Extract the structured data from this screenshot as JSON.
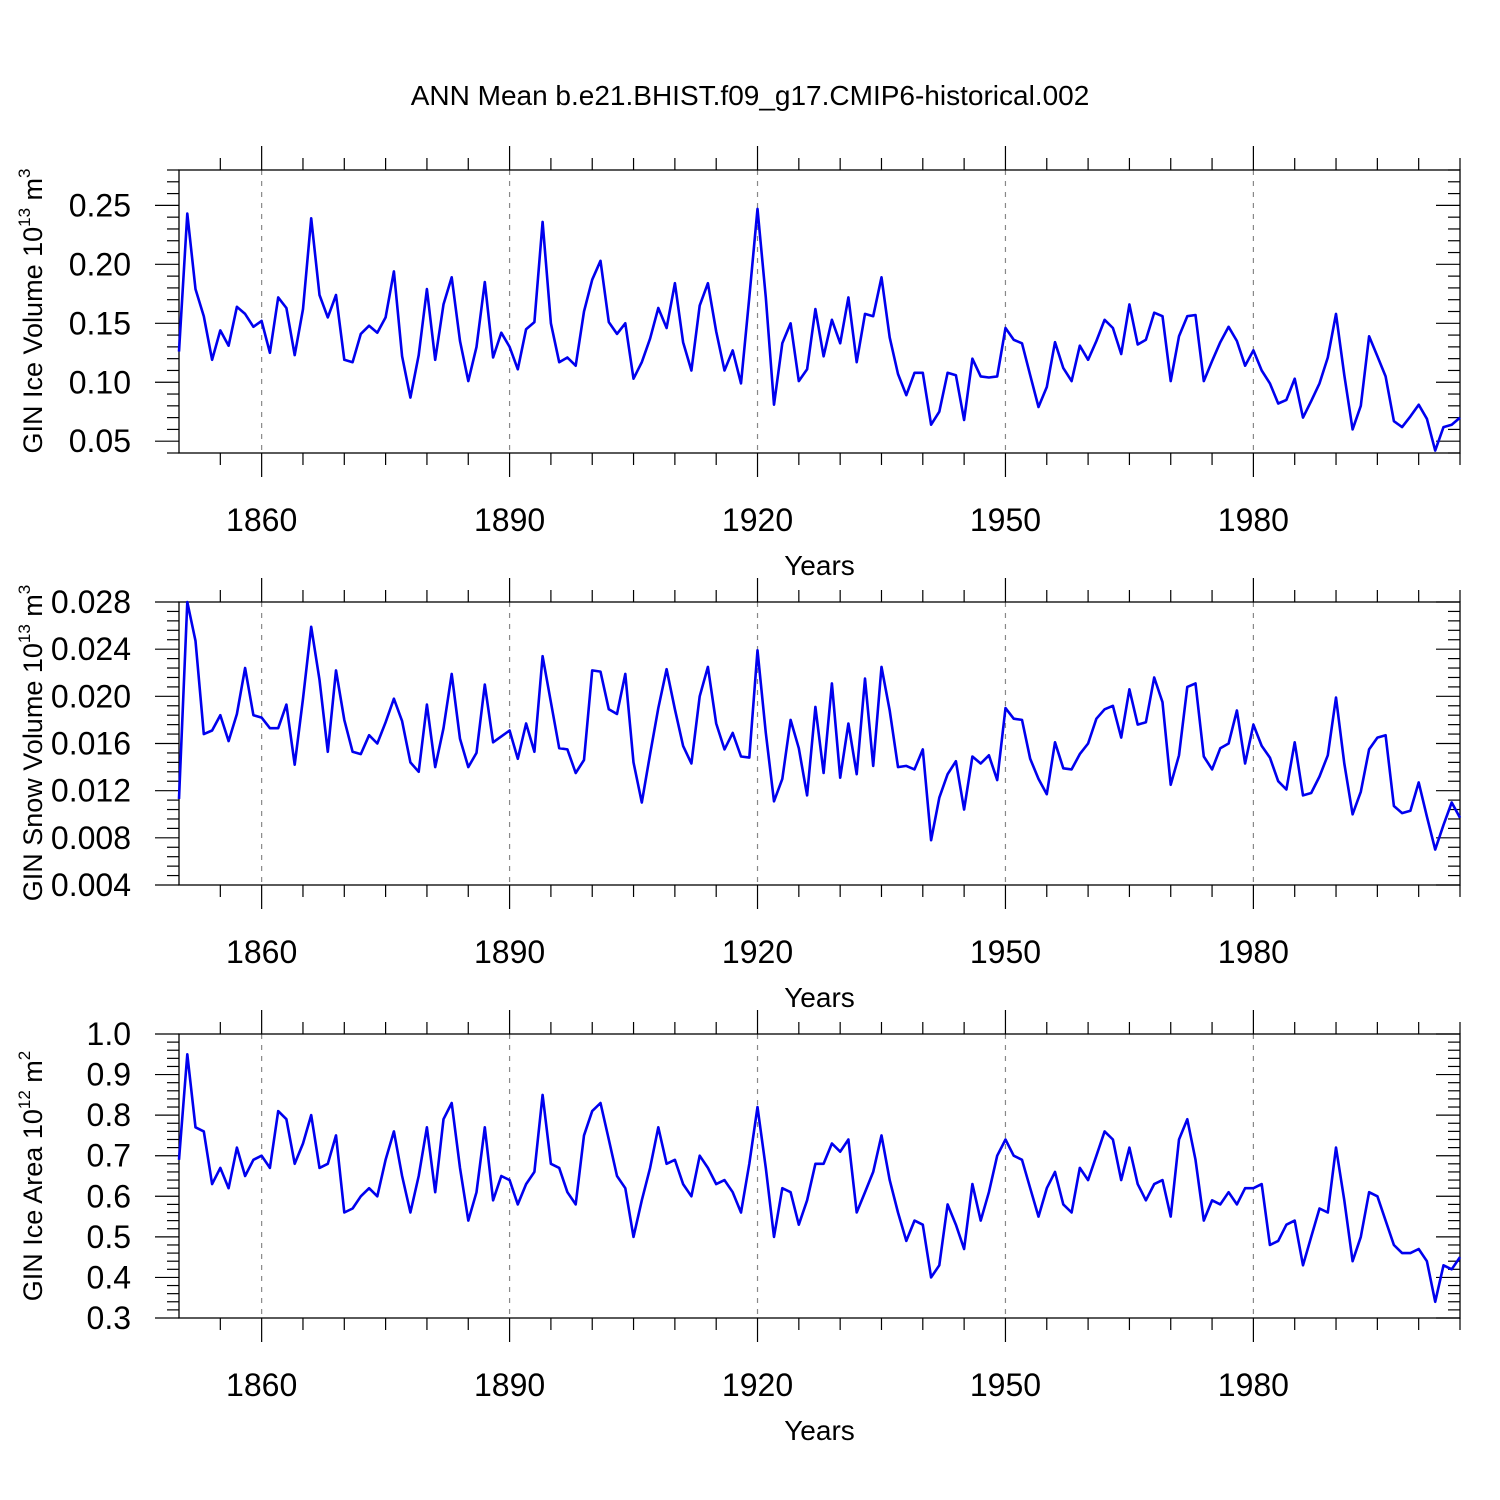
{
  "figure": {
    "title": "ANN Mean b.e21.BHIST.f09_g17.CMIP6-historical.002"
  },
  "colors": {
    "series": "#0000ee",
    "axis": "#000000",
    "grid": "#888888"
  },
  "chart_data": [
    {
      "type": "line",
      "title": "",
      "ylabel_main": "GIN Ice Volume 10",
      "ylabel_exp": "13",
      "ylabel_unit": "m",
      "ylabel_unit_exp": "3",
      "xlabel": "Years",
      "xlim": [
        1850,
        2005
      ],
      "ylim": [
        0.04,
        0.28
      ],
      "xticks": [
        1860,
        1890,
        1920,
        1950,
        1980
      ],
      "xticklabels": [
        "1860",
        "1890",
        "1920",
        "1950",
        "1980"
      ],
      "yticks": [
        0.05,
        0.1,
        0.15,
        0.2,
        0.25
      ],
      "yticklabels": [
        "0.05",
        "0.10",
        "0.15",
        "0.20",
        "0.25"
      ],
      "series": [
        {
          "name": "GIN Ice Volume",
          "x_start": 1850,
          "values": [
            0.126,
            0.243,
            0.179,
            0.156,
            0.119,
            0.144,
            0.131,
            0.164,
            0.158,
            0.147,
            0.152,
            0.125,
            0.172,
            0.163,
            0.123,
            0.162,
            0.239,
            0.174,
            0.155,
            0.174,
            0.119,
            0.117,
            0.141,
            0.148,
            0.142,
            0.155,
            0.194,
            0.122,
            0.087,
            0.123,
            0.179,
            0.119,
            0.166,
            0.189,
            0.135,
            0.101,
            0.13,
            0.185,
            0.121,
            0.142,
            0.13,
            0.111,
            0.145,
            0.151,
            0.236,
            0.15,
            0.117,
            0.121,
            0.114,
            0.16,
            0.187,
            0.203,
            0.151,
            0.141,
            0.15,
            0.103,
            0.117,
            0.137,
            0.163,
            0.146,
            0.184,
            0.134,
            0.11,
            0.165,
            0.184,
            0.143,
            0.11,
            0.127,
            0.099,
            0.172,
            0.247,
            0.172,
            0.081,
            0.133,
            0.15,
            0.101,
            0.111,
            0.162,
            0.122,
            0.153,
            0.133,
            0.172,
            0.117,
            0.158,
            0.156,
            0.189,
            0.138,
            0.107,
            0.089,
            0.108,
            0.108,
            0.064,
            0.075,
            0.108,
            0.106,
            0.068,
            0.12,
            0.105,
            0.104,
            0.105,
            0.146,
            0.136,
            0.133,
            0.106,
            0.079,
            0.096,
            0.134,
            0.112,
            0.101,
            0.131,
            0.119,
            0.135,
            0.153,
            0.146,
            0.124,
            0.166,
            0.132,
            0.136,
            0.159,
            0.156,
            0.101,
            0.139,
            0.156,
            0.157,
            0.101,
            0.118,
            0.134,
            0.147,
            0.135,
            0.114,
            0.127,
            0.11,
            0.099,
            0.082,
            0.085,
            0.103,
            0.07,
            0.084,
            0.099,
            0.121,
            0.158,
            0.106,
            0.06,
            0.08,
            0.139,
            0.122,
            0.105,
            0.067,
            0.062,
            0.071,
            0.081,
            0.069,
            0.042,
            0.062,
            0.064,
            0.07
          ]
        }
      ]
    },
    {
      "type": "line",
      "title": "",
      "ylabel_main": "GIN Snow Volume 10",
      "ylabel_exp": "13",
      "ylabel_unit": "m",
      "ylabel_unit_exp": "3",
      "xlabel": "Years",
      "xlim": [
        1850,
        2005
      ],
      "ylim": [
        0.004,
        0.028
      ],
      "xticks": [
        1860,
        1890,
        1920,
        1950,
        1980
      ],
      "xticklabels": [
        "1860",
        "1890",
        "1920",
        "1950",
        "1980"
      ],
      "yticks": [
        0.004,
        0.008,
        0.012,
        0.016,
        0.02,
        0.024,
        0.028
      ],
      "yticklabels": [
        "0.004",
        "0.008",
        "0.012",
        "0.016",
        "0.020",
        "0.024",
        "0.028"
      ],
      "series": [
        {
          "name": "GIN Snow Volume",
          "x_start": 1850,
          "values": [
            0.0113,
            0.028,
            0.0247,
            0.0168,
            0.0171,
            0.0184,
            0.0162,
            0.0185,
            0.0224,
            0.0184,
            0.0182,
            0.0173,
            0.0173,
            0.0193,
            0.0142,
            0.0198,
            0.0259,
            0.0214,
            0.0153,
            0.0222,
            0.018,
            0.0153,
            0.0151,
            0.0167,
            0.016,
            0.0178,
            0.0198,
            0.0179,
            0.0144,
            0.0136,
            0.0193,
            0.014,
            0.0173,
            0.0219,
            0.0164,
            0.014,
            0.0152,
            0.021,
            0.0161,
            0.0166,
            0.0171,
            0.0147,
            0.0177,
            0.0153,
            0.0234,
            0.0195,
            0.0156,
            0.0155,
            0.0135,
            0.0146,
            0.0222,
            0.0221,
            0.0189,
            0.0185,
            0.0219,
            0.0144,
            0.011,
            0.0151,
            0.019,
            0.0223,
            0.0189,
            0.0158,
            0.0143,
            0.02,
            0.0225,
            0.0177,
            0.0155,
            0.0169,
            0.0149,
            0.0148,
            0.0239,
            0.0169,
            0.0111,
            0.013,
            0.018,
            0.0156,
            0.0116,
            0.0191,
            0.0135,
            0.0211,
            0.0131,
            0.0177,
            0.0134,
            0.0215,
            0.0141,
            0.0225,
            0.0188,
            0.014,
            0.0141,
            0.0138,
            0.0155,
            0.0078,
            0.0114,
            0.0134,
            0.0145,
            0.0104,
            0.0149,
            0.0143,
            0.015,
            0.0129,
            0.019,
            0.0181,
            0.018,
            0.0147,
            0.013,
            0.0117,
            0.0161,
            0.0139,
            0.0138,
            0.0151,
            0.016,
            0.0181,
            0.0189,
            0.0192,
            0.0165,
            0.0206,
            0.0176,
            0.0178,
            0.0216,
            0.0195,
            0.0125,
            0.015,
            0.0208,
            0.0211,
            0.0149,
            0.0138,
            0.0156,
            0.016,
            0.0188,
            0.0143,
            0.0176,
            0.0158,
            0.0148,
            0.0128,
            0.0121,
            0.0161,
            0.0116,
            0.0118,
            0.0132,
            0.015,
            0.0199,
            0.0143,
            0.01,
            0.0119,
            0.0155,
            0.0165,
            0.0167,
            0.0107,
            0.0101,
            0.0103,
            0.0127,
            0.0098,
            0.007,
            0.0091,
            0.011,
            0.0097
          ]
        }
      ]
    },
    {
      "type": "line",
      "title": "",
      "ylabel_main": "GIN Ice Area 10",
      "ylabel_exp": "12",
      "ylabel_unit": "m",
      "ylabel_unit_exp": "2",
      "xlabel": "Years",
      "xlim": [
        1850,
        2005
      ],
      "ylim": [
        0.3,
        1.0
      ],
      "xticks": [
        1860,
        1890,
        1920,
        1950,
        1980
      ],
      "xticklabels": [
        "1860",
        "1890",
        "1920",
        "1950",
        "1980"
      ],
      "yticks": [
        0.3,
        0.4,
        0.5,
        0.6,
        0.7,
        0.8,
        0.9,
        1.0
      ],
      "yticklabels": [
        "0.3",
        "0.4",
        "0.5",
        "0.6",
        "0.7",
        "0.8",
        "0.9",
        "1.0"
      ],
      "series": [
        {
          "name": "GIN Ice Area",
          "x_start": 1850,
          "values": [
            0.69,
            0.95,
            0.77,
            0.76,
            0.63,
            0.67,
            0.62,
            0.72,
            0.65,
            0.69,
            0.7,
            0.67,
            0.81,
            0.79,
            0.68,
            0.73,
            0.8,
            0.67,
            0.68,
            0.75,
            0.56,
            0.57,
            0.6,
            0.62,
            0.6,
            0.69,
            0.76,
            0.65,
            0.56,
            0.65,
            0.77,
            0.61,
            0.79,
            0.83,
            0.67,
            0.54,
            0.61,
            0.77,
            0.59,
            0.65,
            0.64,
            0.58,
            0.63,
            0.66,
            0.85,
            0.68,
            0.67,
            0.61,
            0.58,
            0.75,
            0.81,
            0.83,
            0.74,
            0.65,
            0.62,
            0.5,
            0.59,
            0.67,
            0.77,
            0.68,
            0.69,
            0.63,
            0.6,
            0.7,
            0.67,
            0.63,
            0.64,
            0.61,
            0.56,
            0.68,
            0.82,
            0.67,
            0.5,
            0.62,
            0.61,
            0.53,
            0.59,
            0.68,
            0.68,
            0.73,
            0.71,
            0.74,
            0.56,
            0.61,
            0.66,
            0.75,
            0.64,
            0.56,
            0.49,
            0.54,
            0.53,
            0.4,
            0.43,
            0.58,
            0.53,
            0.47,
            0.63,
            0.54,
            0.61,
            0.7,
            0.74,
            0.7,
            0.69,
            0.62,
            0.55,
            0.62,
            0.66,
            0.58,
            0.56,
            0.67,
            0.64,
            0.7,
            0.76,
            0.74,
            0.64,
            0.72,
            0.63,
            0.59,
            0.63,
            0.64,
            0.55,
            0.74,
            0.79,
            0.69,
            0.54,
            0.59,
            0.58,
            0.61,
            0.58,
            0.62,
            0.62,
            0.63,
            0.48,
            0.49,
            0.53,
            0.54,
            0.43,
            0.5,
            0.57,
            0.56,
            0.72,
            0.59,
            0.44,
            0.5,
            0.61,
            0.6,
            0.54,
            0.48,
            0.46,
            0.46,
            0.47,
            0.44,
            0.34,
            0.43,
            0.42,
            0.45
          ]
        }
      ]
    }
  ]
}
